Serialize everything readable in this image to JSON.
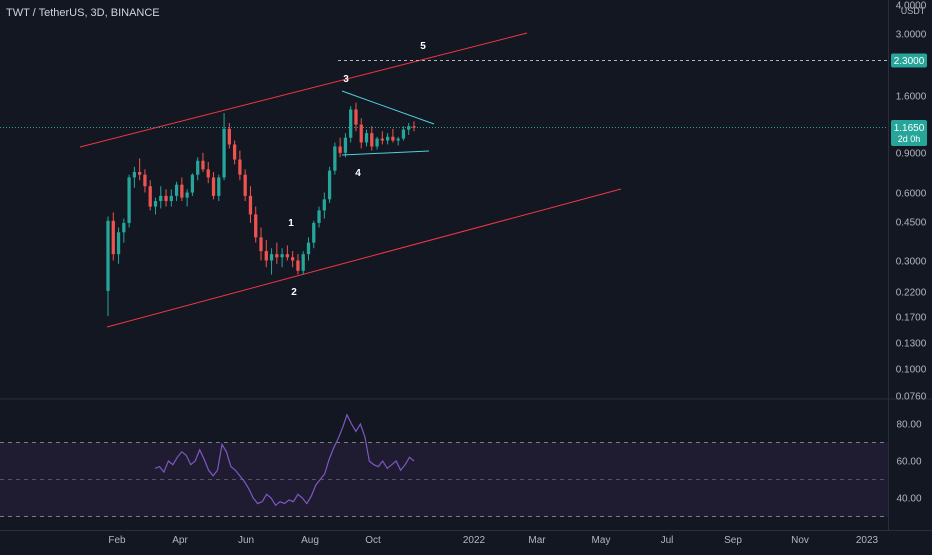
{
  "header": {
    "title": "TWT / TetherUS, 3D, BINANCE",
    "unit": "USDT"
  },
  "colors": {
    "background": "#131722",
    "bull": "#26a69a",
    "bear": "#ef5350",
    "channel": "#f23645",
    "triangle": "#4dd0e1",
    "rsi": "#7e57c2",
    "rsi_band": "#2a2140"
  },
  "chart_data": [
    {
      "type": "candlestick",
      "title": "TWT / TetherUS, 3D, BINANCE",
      "scale": "log",
      "ylim": [
        0.076,
        4.0
      ],
      "y_ticks": [
        "4.0000",
        "3.0000",
        "1.6000",
        "0.9000",
        "0.6000",
        "0.4500",
        "0.3000",
        "0.2200",
        "0.1700",
        "0.1300",
        "0.1000",
        "0.0760"
      ],
      "x_ticks": [
        "Feb",
        "Apr",
        "Jun",
        "Aug",
        "Oct",
        "2022",
        "Mar",
        "May",
        "Jul",
        "Sep",
        "Nov",
        "2023"
      ],
      "last_price": "1.1650",
      "countdown": "2d 0h",
      "target_level": "2.3000",
      "wave_labels": [
        "1",
        "2",
        "3",
        "4",
        "5"
      ],
      "ohlc": [
        [
          0.22,
          0.47,
          0.17,
          0.45
        ],
        [
          0.45,
          0.49,
          0.3,
          0.32
        ],
        [
          0.32,
          0.42,
          0.29,
          0.4
        ],
        [
          0.4,
          0.46,
          0.36,
          0.44
        ],
        [
          0.44,
          0.72,
          0.42,
          0.7
        ],
        [
          0.7,
          0.78,
          0.63,
          0.74
        ],
        [
          0.74,
          0.85,
          0.68,
          0.72
        ],
        [
          0.72,
          0.76,
          0.6,
          0.64
        ],
        [
          0.64,
          0.68,
          0.5,
          0.52
        ],
        [
          0.52,
          0.57,
          0.48,
          0.55
        ],
        [
          0.55,
          0.64,
          0.51,
          0.58
        ],
        [
          0.58,
          0.62,
          0.52,
          0.55
        ],
        [
          0.55,
          0.62,
          0.52,
          0.58
        ],
        [
          0.58,
          0.67,
          0.55,
          0.65
        ],
        [
          0.65,
          0.7,
          0.55,
          0.57
        ],
        [
          0.57,
          0.62,
          0.52,
          0.6
        ],
        [
          0.6,
          0.73,
          0.58,
          0.72
        ],
        [
          0.72,
          0.86,
          0.68,
          0.83
        ],
        [
          0.83,
          0.9,
          0.74,
          0.76
        ],
        [
          0.76,
          0.82,
          0.66,
          0.7
        ],
        [
          0.7,
          0.74,
          0.56,
          0.58
        ],
        [
          0.58,
          0.72,
          0.55,
          0.7
        ],
        [
          0.7,
          1.35,
          0.68,
          1.15
        ],
        [
          1.15,
          1.22,
          0.94,
          0.98
        ],
        [
          0.98,
          1.02,
          0.8,
          0.84
        ],
        [
          0.84,
          0.92,
          0.68,
          0.72
        ],
        [
          0.72,
          0.76,
          0.55,
          0.58
        ],
        [
          0.58,
          0.64,
          0.44,
          0.48
        ],
        [
          0.48,
          0.52,
          0.36,
          0.38
        ],
        [
          0.38,
          0.42,
          0.3,
          0.33
        ],
        [
          0.33,
          0.37,
          0.28,
          0.3
        ],
        [
          0.3,
          0.34,
          0.26,
          0.32
        ],
        [
          0.32,
          0.36,
          0.29,
          0.31
        ],
        [
          0.31,
          0.34,
          0.28,
          0.32
        ],
        [
          0.32,
          0.35,
          0.3,
          0.31
        ],
        [
          0.31,
          0.33,
          0.28,
          0.3
        ],
        [
          0.3,
          0.32,
          0.26,
          0.27
        ],
        [
          0.27,
          0.33,
          0.26,
          0.32
        ],
        [
          0.32,
          0.38,
          0.3,
          0.36
        ],
        [
          0.36,
          0.45,
          0.34,
          0.44
        ],
        [
          0.44,
          0.52,
          0.42,
          0.5
        ],
        [
          0.5,
          0.6,
          0.46,
          0.56
        ],
        [
          0.56,
          0.78,
          0.54,
          0.75
        ],
        [
          0.75,
          1.0,
          0.72,
          0.96
        ],
        [
          0.96,
          1.05,
          0.86,
          0.9
        ],
        [
          0.9,
          1.1,
          0.86,
          1.05
        ],
        [
          1.05,
          1.45,
          1.0,
          1.4
        ],
        [
          1.4,
          1.5,
          1.12,
          1.2
        ],
        [
          1.2,
          1.28,
          0.94,
          1.0
        ],
        [
          1.0,
          1.14,
          0.96,
          1.1
        ],
        [
          1.1,
          1.18,
          0.92,
          0.96
        ],
        [
          0.96,
          1.06,
          0.93,
          1.04
        ],
        [
          1.04,
          1.12,
          0.98,
          1.02
        ],
        [
          1.02,
          1.1,
          0.98,
          1.06
        ],
        [
          1.06,
          1.15,
          1.0,
          1.02
        ],
        [
          1.02,
          1.06,
          0.97,
          1.04
        ],
        [
          1.04,
          1.18,
          1.02,
          1.14
        ],
        [
          1.14,
          1.22,
          1.08,
          1.18
        ],
        [
          1.18,
          1.24,
          1.12,
          1.165
        ]
      ],
      "rsi": {
        "ylim": [
          30,
          90
        ],
        "y_ticks": [
          "80.00",
          "60.00",
          "40.00"
        ],
        "band": [
          30,
          70
        ],
        "values": [
          56,
          57,
          54,
          60,
          58,
          62,
          65,
          63,
          58,
          60,
          66,
          61,
          55,
          52,
          55,
          69,
          65,
          57,
          55,
          52,
          49,
          45,
          40,
          37,
          38,
          42,
          40,
          36,
          38,
          37,
          39,
          38,
          42,
          40,
          37,
          41,
          47,
          50,
          53,
          61,
          67,
          72,
          78,
          85,
          80,
          76,
          80,
          73,
          60,
          58,
          57,
          60,
          56,
          58,
          60,
          55,
          58,
          62,
          60
        ]
      }
    }
  ]
}
